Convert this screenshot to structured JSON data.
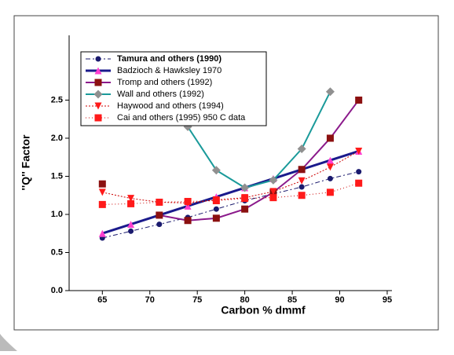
{
  "chart_data": {
    "type": "line",
    "xlabel": "Carbon % dmmf",
    "ylabel": "''Q'' Factor",
    "x": [
      65,
      68,
      71,
      74,
      77,
      80,
      83,
      86,
      89,
      92
    ],
    "xlim": [
      61.5,
      95.5
    ],
    "xticks": [
      65,
      70,
      75,
      80,
      85,
      90,
      95
    ],
    "ylim": [
      0,
      3.35
    ],
    "yticks": [
      {
        "value": 0,
        "label": "0.0"
      },
      {
        "value": 0.5,
        "label": "0.5"
      },
      {
        "value": 1,
        "label": "1.0"
      },
      {
        "value": 1.5,
        "label": "1.5"
      },
      {
        "value": 2,
        "label": "2.0"
      },
      {
        "value": 2.5,
        "label": "2.5"
      }
    ],
    "series": [
      {
        "name": "Tamura and others (1990)",
        "color": "#1a1a6e",
        "marker_color": "#1a1a6e",
        "marker": "circle",
        "dash": "6 3 2 3",
        "width": 1,
        "values": [
          0.69,
          0.78,
          0.87,
          0.96,
          1.07,
          1.18,
          1.27,
          1.36,
          1.47,
          1.56
        ]
      },
      {
        "name": "Badzioch & Hawksley 1970",
        "color": "#1a1a8c",
        "marker_color": "#ff3fd0",
        "marker": "triangle-up",
        "dash": "",
        "width": 3,
        "values": [
          0.75,
          0.87,
          0.99,
          1.11,
          1.23,
          1.35,
          1.47,
          1.59,
          1.71,
          1.83
        ]
      },
      {
        "name": "Tromp and others (1992)",
        "color": "#8b1a8b",
        "marker_color": "#8b1010",
        "marker": "square",
        "dash": "",
        "width": 2,
        "values": [
          1.4,
          null,
          0.99,
          0.92,
          0.95,
          1.07,
          1.29,
          1.59,
          2.0,
          2.5
        ]
      },
      {
        "name": "Wall and others (1992)",
        "color": "#1a9a9a",
        "marker_color": "#909090",
        "marker": "diamond",
        "dash": "",
        "width": 2,
        "values": [
          null,
          null,
          null,
          2.15,
          1.58,
          1.35,
          1.45,
          1.86,
          2.61,
          null
        ]
      },
      {
        "name": "Haywood and others (1994)",
        "color": "#cc0000",
        "marker_color": "#ff1a1a",
        "marker": "triangle-down",
        "dash": "2 2",
        "width": 1,
        "values": [
          1.29,
          1.21,
          1.16,
          1.15,
          1.19,
          1.22,
          1.3,
          1.44,
          1.62,
          1.83
        ]
      },
      {
        "name": "Cai and others (1995)  950 C data",
        "color": "#cc0000",
        "marker_color": "#ff1a1a",
        "marker": "square",
        "dash": "1 3",
        "width": 1,
        "values": [
          1.13,
          1.14,
          1.16,
          1.17,
          1.18,
          1.21,
          1.22,
          1.25,
          1.29,
          1.41
        ]
      }
    ]
  }
}
